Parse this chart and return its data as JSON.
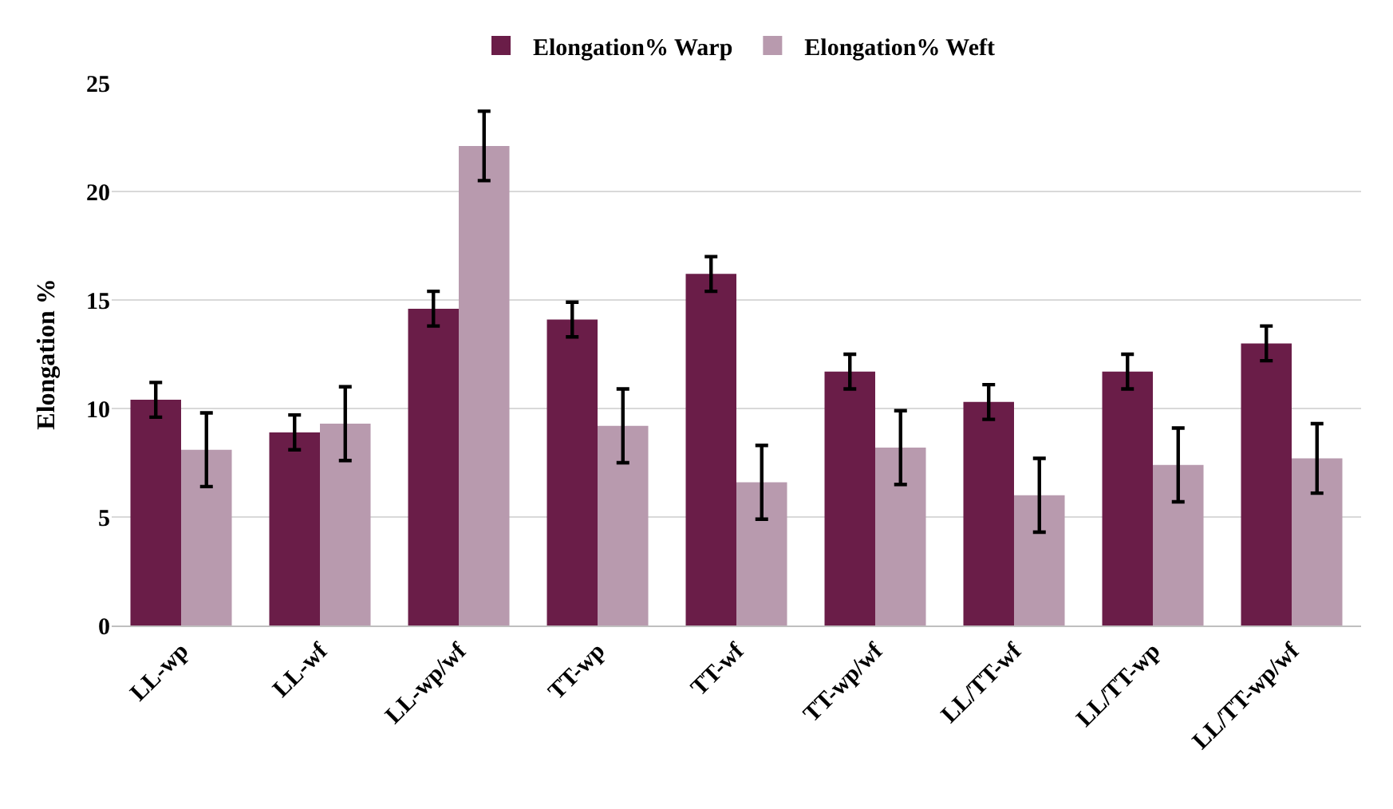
{
  "chart_data": {
    "type": "bar",
    "ylabel": "Elongation %",
    "categories": [
      "LL-wp",
      "LL-wf",
      "LL-wp/wf",
      "TT-wp",
      "TT-wf",
      "TT-wp/wf",
      "LL/TT-wf",
      "LL/TT-wp",
      "LL/TT-wp/wf"
    ],
    "series": [
      {
        "name": "Elongation% Warp",
        "color": "#6a1d48",
        "values": [
          10.4,
          8.9,
          14.6,
          14.1,
          16.2,
          11.7,
          10.3,
          11.7,
          13.0
        ],
        "errors": [
          0.8,
          0.8,
          0.8,
          0.8,
          0.8,
          0.8,
          0.8,
          0.8,
          0.8
        ]
      },
      {
        "name": "Elongation% Weft",
        "color": "#b89aae",
        "values": [
          8.1,
          9.3,
          22.1,
          9.2,
          6.6,
          8.2,
          6.0,
          7.4,
          7.7
        ],
        "errors": [
          1.7,
          1.7,
          1.6,
          1.7,
          1.7,
          1.7,
          1.7,
          1.7,
          1.6
        ]
      }
    ],
    "ylim": [
      0,
      25
    ],
    "yticks": [
      0,
      5,
      10,
      15,
      20,
      25
    ],
    "grid": "y",
    "legend": "top"
  }
}
